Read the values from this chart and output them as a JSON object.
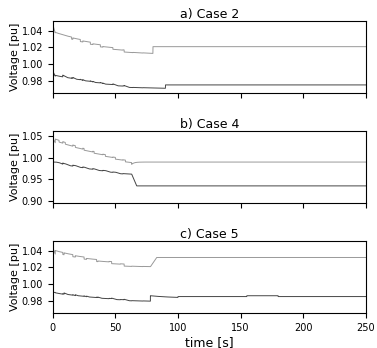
{
  "title_a": "a) Case 2",
  "title_b": "b) Case 4",
  "title_c": "c) Case 5",
  "xlabel": "time [s]",
  "ylabel": "Voltage [pu]",
  "xlim": [
    0,
    250
  ],
  "panel_a": {
    "ylim": [
      0.965,
      1.052
    ],
    "yticks": [
      0.98,
      1.0,
      1.02,
      1.04
    ]
  },
  "panel_b": {
    "ylim": [
      0.895,
      1.062
    ],
    "yticks": [
      0.9,
      0.95,
      1.0,
      1.05
    ]
  },
  "panel_c": {
    "ylim": [
      0.965,
      1.052
    ],
    "yticks": [
      0.98,
      1.0,
      1.02,
      1.04
    ]
  },
  "line_color_upper": "#999999",
  "line_color_lower": "#444444",
  "linewidth": 0.7,
  "title_fontsize": 9,
  "label_fontsize": 8,
  "tick_fontsize": 7
}
